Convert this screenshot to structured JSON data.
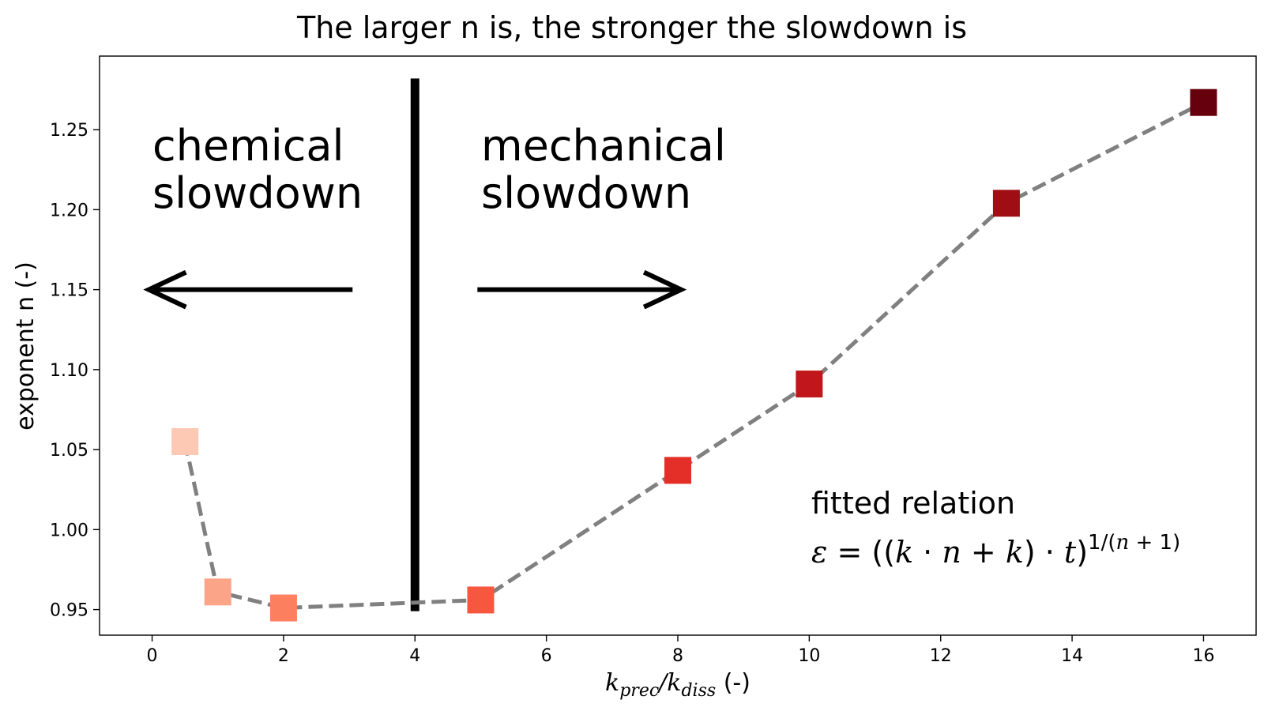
{
  "chart_data": {
    "type": "scatter",
    "title": "The larger n is, the stronger the slowdown is",
    "xlabel": {
      "k1": "k",
      "sub1": "prec",
      "slash": "/",
      "k2": "k",
      "sub2": "diss",
      "unit": " (-)"
    },
    "ylabel": "exponent n (-)",
    "xlim": [
      -0.8,
      16.8
    ],
    "ylim": [
      0.934,
      1.296
    ],
    "xticks": [
      0,
      2,
      4,
      6,
      8,
      10,
      12,
      14,
      16
    ],
    "xtick_labels": [
      "0",
      "2",
      "4",
      "6",
      "8",
      "10",
      "12",
      "14",
      "16"
    ],
    "yticks": [
      0.95,
      1.0,
      1.05,
      1.1,
      1.15,
      1.2,
      1.25
    ],
    "ytick_labels": [
      "0.95",
      "1.00",
      "1.05",
      "1.10",
      "1.15",
      "1.20",
      "1.25"
    ],
    "grid": false,
    "series": [
      {
        "marker": "square",
        "line_style": "dashed",
        "line_color": "#808080",
        "x": [
          0.5,
          1,
          2,
          5,
          8,
          10,
          13,
          16
        ],
        "y": [
          1.055,
          0.961,
          0.951,
          0.956,
          1.037,
          1.091,
          1.204,
          1.267
        ],
        "marker_colors": [
          "#fdc9b4",
          "#fca487",
          "#fc7f5f",
          "#f6573f",
          "#e32f27",
          "#c1161b",
          "#9f0e15",
          "#67000d"
        ]
      }
    ],
    "annotations": {
      "divider": {
        "x": 4,
        "y_range": [
          0.949,
          1.282
        ]
      },
      "left_region": {
        "lines": [
          "chemical",
          "slowdown"
        ],
        "arrow": {
          "from_x": 3.05,
          "to_x": -0.05,
          "y": 1.15,
          "direction": "left"
        }
      },
      "right_region": {
        "lines": [
          "mechanical",
          "slowdown"
        ],
        "arrow": {
          "from_x": 4.95,
          "to_x": 8.05,
          "y": 1.15,
          "direction": "right"
        }
      },
      "fit": {
        "title": "fitted relation",
        "eps": "ε",
        "eq": " = ((",
        "k1": "k",
        "dot1": " · ",
        "n1": "n",
        "plus1": " + ",
        "k2": "k",
        "close1": ") · ",
        "t": "t",
        "close2": ")",
        "exp_prefix": "1/(",
        "exp_n": "n",
        "exp_plus": " + 1)"
      }
    }
  }
}
